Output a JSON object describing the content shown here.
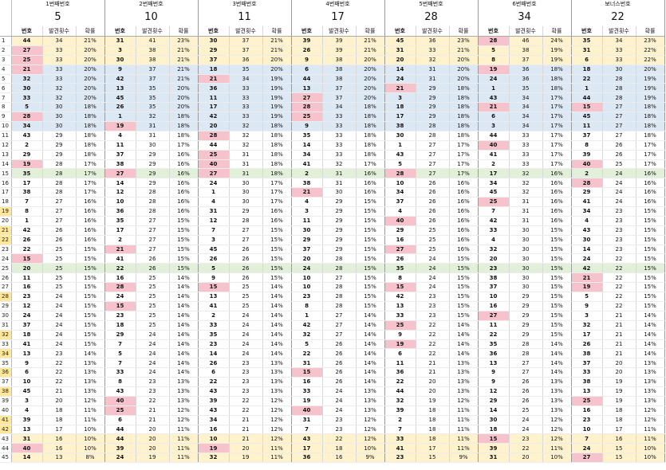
{
  "columns": [
    "1번째번호",
    "2번째번호",
    "3번째번호",
    "4번째번호",
    "5번째번호",
    "6번째번호",
    "보너스번호"
  ],
  "winning": [
    "5",
    "10",
    "11",
    "17",
    "28",
    "34",
    "22"
  ],
  "sub_headers": {
    "num": "번호",
    "count": "발견횟수",
    "rate": "확률"
  },
  "rows": [
    [
      [
        44,
        34,
        "21%"
      ],
      [
        31,
        41,
        "23%"
      ],
      [
        30,
        37,
        "21%"
      ],
      [
        39,
        39,
        "21%"
      ],
      [
        45,
        36,
        "23%"
      ],
      [
        28,
        46,
        "24%"
      ],
      [
        35,
        34,
        "23%"
      ]
    ],
    [
      [
        27,
        33,
        "20%"
      ],
      [
        3,
        38,
        "21%"
      ],
      [
        29,
        37,
        "21%"
      ],
      [
        26,
        39,
        "21%"
      ],
      [
        31,
        33,
        "21%"
      ],
      [
        5,
        38,
        "19%"
      ],
      [
        31,
        33,
        "22%"
      ]
    ],
    [
      [
        25,
        33,
        "20%"
      ],
      [
        30,
        38,
        "21%"
      ],
      [
        37,
        36,
        "20%"
      ],
      [
        9,
        38,
        "20%"
      ],
      [
        20,
        32,
        "20%"
      ],
      [
        8,
        37,
        "19%"
      ],
      [
        6,
        33,
        "22%"
      ]
    ],
    [
      [
        21,
        33,
        "20%"
      ],
      [
        9,
        37,
        "21%"
      ],
      [
        18,
        35,
        "20%"
      ],
      [
        6,
        38,
        "20%"
      ],
      [
        14,
        31,
        "20%"
      ],
      [
        19,
        36,
        "18%"
      ],
      [
        18,
        30,
        "20%"
      ]
    ],
    [
      [
        32,
        33,
        "20%"
      ],
      [
        42,
        37,
        "21%"
      ],
      [
        21,
        34,
        "19%"
      ],
      [
        44,
        38,
        "20%"
      ],
      [
        24,
        31,
        "20%"
      ],
      [
        24,
        36,
        "18%"
      ],
      [
        22,
        28,
        "19%"
      ]
    ],
    [
      [
        30,
        32,
        "20%"
      ],
      [
        13,
        35,
        "20%"
      ],
      [
        36,
        33,
        "19%"
      ],
      [
        13,
        37,
        "20%"
      ],
      [
        21,
        29,
        "18%"
      ],
      [
        1,
        35,
        "18%"
      ],
      [
        1,
        28,
        "19%"
      ]
    ],
    [
      [
        33,
        32,
        "20%"
      ],
      [
        45,
        35,
        "20%"
      ],
      [
        11,
        33,
        "19%"
      ],
      [
        27,
        37,
        "20%"
      ],
      [
        3,
        29,
        "18%"
      ],
      [
        43,
        34,
        "17%"
      ],
      [
        44,
        28,
        "19%"
      ]
    ],
    [
      [
        5,
        30,
        "18%"
      ],
      [
        26,
        35,
        "20%"
      ],
      [
        17,
        33,
        "19%"
      ],
      [
        28,
        34,
        "18%"
      ],
      [
        18,
        29,
        "18%"
      ],
      [
        21,
        34,
        "17%"
      ],
      [
        15,
        27,
        "18%"
      ]
    ],
    [
      [
        28,
        30,
        "18%"
      ],
      [
        1,
        32,
        "18%"
      ],
      [
        42,
        33,
        "19%"
      ],
      [
        25,
        33,
        "18%"
      ],
      [
        17,
        29,
        "18%"
      ],
      [
        6,
        34,
        "17%"
      ],
      [
        45,
        27,
        "18%"
      ]
    ],
    [
      [
        34,
        30,
        "18%"
      ],
      [
        19,
        31,
        "18%"
      ],
      [
        20,
        32,
        "18%"
      ],
      [
        9,
        33,
        "18%"
      ],
      [
        38,
        28,
        "18%"
      ],
      [
        3,
        34,
        "17%"
      ],
      [
        11,
        27,
        "18%"
      ]
    ],
    [
      [
        43,
        29,
        "18%"
      ],
      [
        4,
        31,
        "18%"
      ],
      [
        28,
        32,
        "18%"
      ],
      [
        35,
        33,
        "18%"
      ],
      [
        30,
        28,
        "18%"
      ],
      [
        44,
        33,
        "17%"
      ],
      [
        37,
        27,
        "18%"
      ]
    ],
    [
      [
        2,
        29,
        "18%"
      ],
      [
        11,
        30,
        "17%"
      ],
      [
        44,
        32,
        "18%"
      ],
      [
        14,
        33,
        "18%"
      ],
      [
        1,
        27,
        "17%"
      ],
      [
        40,
        33,
        "17%"
      ],
      [
        8,
        26,
        "17%"
      ]
    ],
    [
      [
        29,
        29,
        "18%"
      ],
      [
        37,
        29,
        "16%"
      ],
      [
        25,
        31,
        "18%"
      ],
      [
        34,
        33,
        "18%"
      ],
      [
        43,
        27,
        "17%"
      ],
      [
        41,
        33,
        "17%"
      ],
      [
        39,
        26,
        "17%"
      ]
    ],
    [
      [
        19,
        28,
        "17%"
      ],
      [
        38,
        29,
        "16%"
      ],
      [
        40,
        31,
        "18%"
      ],
      [
        41,
        32,
        "17%"
      ],
      [
        5,
        27,
        "17%"
      ],
      [
        2,
        33,
        "17%"
      ],
      [
        40,
        25,
        "17%"
      ]
    ],
    [
      [
        35,
        28,
        "17%"
      ],
      [
        27,
        29,
        "16%"
      ],
      [
        27,
        31,
        "18%"
      ],
      [
        2,
        31,
        "16%"
      ],
      [
        28,
        27,
        "17%"
      ],
      [
        17,
        32,
        "16%"
      ],
      [
        2,
        24,
        "16%"
      ]
    ],
    [
      [
        17,
        28,
        "17%"
      ],
      [
        14,
        29,
        "16%"
      ],
      [
        24,
        30,
        "17%"
      ],
      [
        38,
        31,
        "16%"
      ],
      [
        10,
        26,
        "16%"
      ],
      [
        34,
        32,
        "16%"
      ],
      [
        28,
        24,
        "16%"
      ]
    ],
    [
      [
        38,
        28,
        "17%"
      ],
      [
        12,
        28,
        "16%"
      ],
      [
        1,
        30,
        "17%"
      ],
      [
        21,
        30,
        "16%"
      ],
      [
        34,
        26,
        "16%"
      ],
      [
        45,
        32,
        "16%"
      ],
      [
        29,
        24,
        "16%"
      ]
    ],
    [
      [
        7,
        27,
        "16%"
      ],
      [
        10,
        28,
        "16%"
      ],
      [
        4,
        30,
        "17%"
      ],
      [
        4,
        29,
        "15%"
      ],
      [
        37,
        26,
        "16%"
      ],
      [
        25,
        31,
        "16%"
      ],
      [
        41,
        24,
        "16%"
      ]
    ],
    [
      [
        8,
        27,
        "16%"
      ],
      [
        36,
        28,
        "16%"
      ],
      [
        31,
        29,
        "16%"
      ],
      [
        3,
        29,
        "15%"
      ],
      [
        4,
        26,
        "16%"
      ],
      [
        7,
        31,
        "16%"
      ],
      [
        34,
        23,
        "15%"
      ]
    ],
    [
      [
        1,
        27,
        "16%"
      ],
      [
        35,
        27,
        "15%"
      ],
      [
        12,
        28,
        "16%"
      ],
      [
        11,
        29,
        "15%"
      ],
      [
        40,
        26,
        "16%"
      ],
      [
        42,
        31,
        "16%"
      ],
      [
        4,
        23,
        "15%"
      ]
    ],
    [
      [
        42,
        26,
        "16%"
      ],
      [
        17,
        27,
        "15%"
      ],
      [
        7,
        27,
        "15%"
      ],
      [
        30,
        29,
        "15%"
      ],
      [
        29,
        25,
        "16%"
      ],
      [
        33,
        30,
        "15%"
      ],
      [
        43,
        23,
        "15%"
      ]
    ],
    [
      [
        26,
        26,
        "16%"
      ],
      [
        2,
        27,
        "15%"
      ],
      [
        3,
        27,
        "15%"
      ],
      [
        29,
        29,
        "15%"
      ],
      [
        16,
        25,
        "16%"
      ],
      [
        4,
        30,
        "15%"
      ],
      [
        30,
        23,
        "15%"
      ]
    ],
    [
      [
        22,
        25,
        "15%"
      ],
      [
        21,
        27,
        "15%"
      ],
      [
        45,
        26,
        "15%"
      ],
      [
        37,
        29,
        "15%"
      ],
      [
        27,
        25,
        "16%"
      ],
      [
        32,
        30,
        "15%"
      ],
      [
        14,
        23,
        "15%"
      ]
    ],
    [
      [
        15,
        25,
        "15%"
      ],
      [
        41,
        26,
        "15%"
      ],
      [
        26,
        26,
        "15%"
      ],
      [
        20,
        28,
        "15%"
      ],
      [
        26,
        24,
        "15%"
      ],
      [
        20,
        30,
        "15%"
      ],
      [
        24,
        22,
        "15%"
      ]
    ],
    [
      [
        20,
        25,
        "15%"
      ],
      [
        22,
        26,
        "15%"
      ],
      [
        5,
        26,
        "15%"
      ],
      [
        24,
        28,
        "15%"
      ],
      [
        35,
        24,
        "15%"
      ],
      [
        23,
        30,
        "15%"
      ],
      [
        42,
        22,
        "15%"
      ]
    ],
    [
      [
        11,
        25,
        "15%"
      ],
      [
        16,
        25,
        "14%"
      ],
      [
        9,
        26,
        "15%"
      ],
      [
        10,
        27,
        "15%"
      ],
      [
        8,
        24,
        "15%"
      ],
      [
        38,
        30,
        "15%"
      ],
      [
        21,
        22,
        "15%"
      ]
    ],
    [
      [
        16,
        25,
        "15%"
      ],
      [
        28,
        25,
        "14%"
      ],
      [
        15,
        25,
        "14%"
      ],
      [
        10,
        28,
        "15%"
      ],
      [
        15,
        24,
        "15%"
      ],
      [
        37,
        30,
        "15%"
      ],
      [
        19,
        22,
        "15%"
      ]
    ],
    [
      [
        23,
        24,
        "15%"
      ],
      [
        24,
        25,
        "14%"
      ],
      [
        13,
        25,
        "14%"
      ],
      [
        23,
        28,
        "15%"
      ],
      [
        42,
        23,
        "15%"
      ],
      [
        10,
        29,
        "15%"
      ],
      [
        5,
        22,
        "15%"
      ]
    ],
    [
      [
        12,
        24,
        "15%"
      ],
      [
        15,
        25,
        "14%"
      ],
      [
        41,
        25,
        "14%"
      ],
      [
        8,
        28,
        "15%"
      ],
      [
        13,
        23,
        "15%"
      ],
      [
        16,
        29,
        "15%"
      ],
      [
        9,
        22,
        "15%"
      ]
    ],
    [
      [
        24,
        24,
        "15%"
      ],
      [
        23,
        25,
        "14%"
      ],
      [
        2,
        24,
        "14%"
      ],
      [
        1,
        27,
        "14%"
      ],
      [
        33,
        23,
        "15%"
      ],
      [
        27,
        29,
        "15%"
      ],
      [
        3,
        21,
        "14%"
      ]
    ],
    [
      [
        37,
        24,
        "15%"
      ],
      [
        18,
        25,
        "14%"
      ],
      [
        33,
        24,
        "14%"
      ],
      [
        42,
        27,
        "14%"
      ],
      [
        25,
        22,
        "14%"
      ],
      [
        11,
        29,
        "15%"
      ],
      [
        32,
        21,
        "14%"
      ]
    ],
    [
      [
        18,
        24,
        "15%"
      ],
      [
        29,
        24,
        "14%"
      ],
      [
        35,
        24,
        "14%"
      ],
      [
        32,
        27,
        "14%"
      ],
      [
        9,
        22,
        "14%"
      ],
      [
        22,
        29,
        "15%"
      ],
      [
        17,
        21,
        "14%"
      ]
    ],
    [
      [
        41,
        24,
        "15%"
      ],
      [
        7,
        24,
        "14%"
      ],
      [
        23,
        24,
        "14%"
      ],
      [
        5,
        26,
        "14%"
      ],
      [
        19,
        22,
        "14%"
      ],
      [
        35,
        28,
        "14%"
      ],
      [
        26,
        21,
        "14%"
      ]
    ],
    [
      [
        13,
        23,
        "14%"
      ],
      [
        5,
        24,
        "14%"
      ],
      [
        14,
        24,
        "14%"
      ],
      [
        22,
        26,
        "14%"
      ],
      [
        6,
        22,
        "14%"
      ],
      [
        36,
        28,
        "14%"
      ],
      [
        38,
        21,
        "14%"
      ]
    ],
    [
      [
        9,
        22,
        "13%"
      ],
      [
        7,
        24,
        "14%"
      ],
      [
        26,
        23,
        "13%"
      ],
      [
        31,
        26,
        "14%"
      ],
      [
        11,
        21,
        "13%"
      ],
      [
        13,
        27,
        "14%"
      ],
      [
        37,
        20,
        "13%"
      ]
    ],
    [
      [
        6,
        22,
        "13%"
      ],
      [
        33,
        24,
        "14%"
      ],
      [
        6,
        23,
        "13%"
      ],
      [
        15,
        26,
        "14%"
      ],
      [
        36,
        21,
        "13%"
      ],
      [
        9,
        27,
        "14%"
      ],
      [
        33,
        20,
        "13%"
      ]
    ],
    [
      [
        10,
        22,
        "13%"
      ],
      [
        8,
        23,
        "13%"
      ],
      [
        22,
        23,
        "13%"
      ],
      [
        16,
        26,
        "14%"
      ],
      [
        22,
        20,
        "13%"
      ],
      [
        9,
        26,
        "13%"
      ],
      [
        38,
        19,
        "13%"
      ]
    ],
    [
      [
        45,
        21,
        "13%"
      ],
      [
        43,
        23,
        "13%"
      ],
      [
        43,
        23,
        "13%"
      ],
      [
        33,
        24,
        "13%"
      ],
      [
        44,
        20,
        "13%"
      ],
      [
        12,
        26,
        "13%"
      ],
      [
        13,
        19,
        "13%"
      ]
    ],
    [
      [
        3,
        20,
        "12%"
      ],
      [
        40,
        22,
        "13%"
      ],
      [
        39,
        22,
        "12%"
      ],
      [
        19,
        24,
        "13%"
      ],
      [
        32,
        19,
        "12%"
      ],
      [
        29,
        26,
        "13%"
      ],
      [
        25,
        19,
        "13%"
      ]
    ],
    [
      [
        4,
        18,
        "11%"
      ],
      [
        25,
        21,
        "12%"
      ],
      [
        43,
        22,
        "12%"
      ],
      [
        40,
        24,
        "13%"
      ],
      [
        39,
        18,
        "11%"
      ],
      [
        14,
        25,
        "13%"
      ],
      [
        16,
        18,
        "12%"
      ]
    ],
    [
      [
        39,
        18,
        "11%"
      ],
      [
        6,
        21,
        "12%"
      ],
      [
        34,
        21,
        "12%"
      ],
      [
        31,
        23,
        "12%"
      ],
      [
        2,
        18,
        "11%"
      ],
      [
        30,
        24,
        "12%"
      ],
      [
        23,
        18,
        "12%"
      ]
    ],
    [
      [
        13,
        17,
        "10%"
      ],
      [
        44,
        20,
        "11%"
      ],
      [
        16,
        21,
        "12%"
      ],
      [
        7,
        23,
        "12%"
      ],
      [
        7,
        18,
        "11%"
      ],
      [
        18,
        24,
        "12%"
      ],
      [
        10,
        17,
        "11%"
      ]
    ],
    [
      [
        31,
        16,
        "10%"
      ],
      [
        44,
        20,
        "11%"
      ],
      [
        10,
        21,
        "12%"
      ],
      [
        43,
        22,
        "12%"
      ],
      [
        33,
        18,
        "11%"
      ],
      [
        15,
        23,
        "12%"
      ],
      [
        7,
        16,
        "11%"
      ]
    ],
    [
      [
        40,
        16,
        "10%"
      ],
      [
        39,
        20,
        "11%"
      ],
      [
        19,
        20,
        "11%"
      ],
      [
        17,
        18,
        "10%"
      ],
      [
        41,
        17,
        "11%"
      ],
      [
        39,
        22,
        "11%"
      ],
      [
        24,
        15,
        "10%"
      ]
    ],
    [
      [
        14,
        13,
        "8%"
      ],
      [
        24,
        19,
        "11%"
      ],
      [
        32,
        19,
        "11%"
      ],
      [
        36,
        16,
        "9%"
      ],
      [
        23,
        15,
        "9%"
      ],
      [
        31,
        20,
        "10%"
      ],
      [
        27,
        15,
        "10%"
      ]
    ]
  ]
}
